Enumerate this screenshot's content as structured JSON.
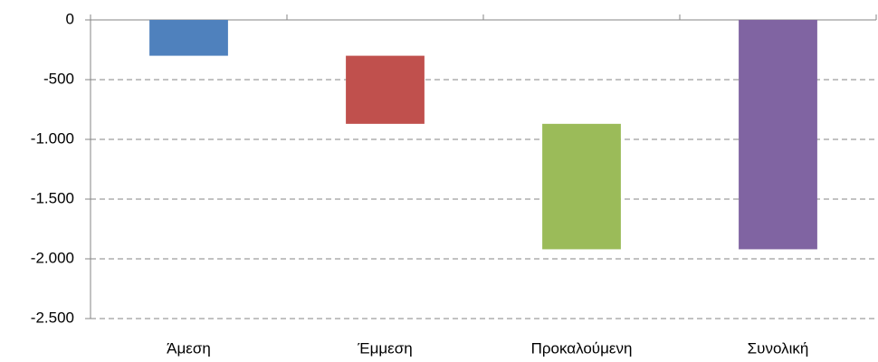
{
  "chart_data": {
    "type": "waterfall",
    "categories": [
      "Άμεση",
      "Έμμεση",
      "Προκαλούμενη",
      "Συνολική"
    ],
    "values": [
      -300,
      -570,
      -1050,
      -1920
    ],
    "is_total": [
      false,
      false,
      false,
      true
    ],
    "colors": [
      "#4f81bd",
      "#c0504d",
      "#9bbb59",
      "#8064a2"
    ],
    "ylim": [
      -2500,
      0
    ],
    "yticks": [
      0,
      -500,
      {
        "value": -1000,
        "label": "-1.000"
      },
      {
        "value": -1500,
        "label": "-1.500"
      },
      {
        "value": -2000,
        "label": "-2.000"
      },
      {
        "value": -2500,
        "label": "-2.500"
      }
    ],
    "grid": true
  }
}
